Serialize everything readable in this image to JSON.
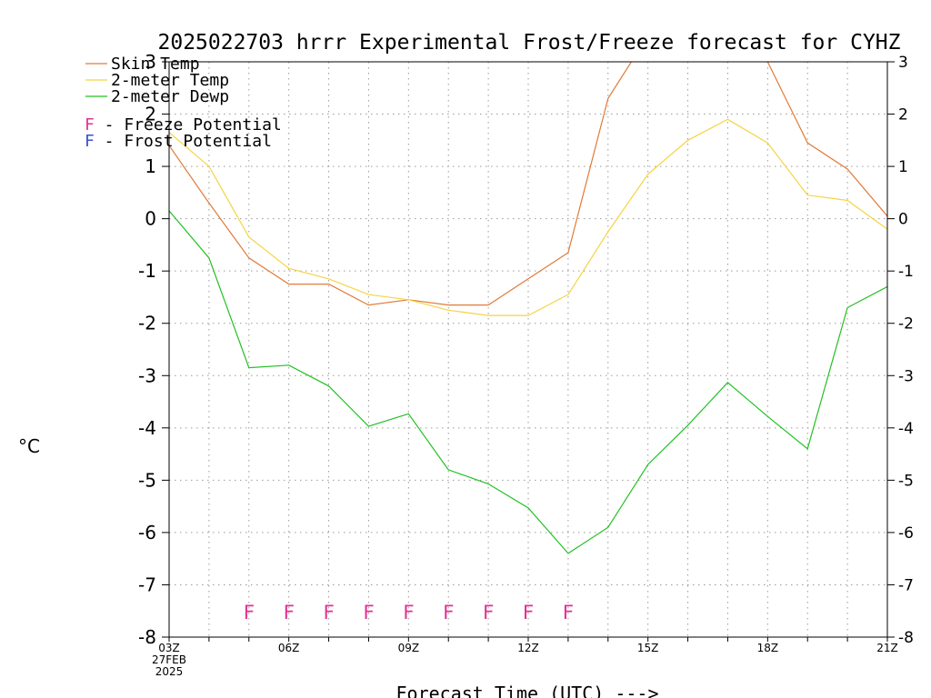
{
  "chart_data": {
    "type": "line",
    "title": "2025022703 hrrr Experimental Frost/Freeze forecast for CYHZ",
    "xlabel": "Forecast Time (UTC) --->",
    "ylabel": "°C",
    "ylim": [
      -8,
      3
    ],
    "y_ticks": [
      -8,
      -7,
      -6,
      -5,
      -4,
      -3,
      -2,
      -1,
      0,
      1,
      2,
      3
    ],
    "x_ticks": [
      {
        "hour": 0,
        "label": "03Z"
      },
      {
        "hour": 3,
        "label": "06Z"
      },
      {
        "hour": 6,
        "label": "09Z"
      },
      {
        "hour": 9,
        "label": "12Z"
      },
      {
        "hour": 12,
        "label": "15Z"
      },
      {
        "hour": 15,
        "label": "18Z"
      },
      {
        "hour": 18,
        "label": "21Z"
      }
    ],
    "start_date_label": [
      "27FEB",
      "2025"
    ],
    "grid": true,
    "legend_position": "top-left",
    "series": [
      {
        "name": "Skin Temp",
        "color": "#e07b39",
        "x": [
          0,
          1,
          2,
          3,
          4,
          5,
          6,
          7,
          8,
          9,
          10,
          11,
          12,
          13,
          14,
          15,
          16,
          17,
          18
        ],
        "values": [
          1.4,
          0.3,
          -0.75,
          -1.25,
          -1.25,
          -1.65,
          -1.55,
          -1.65,
          -1.65,
          -1.15,
          -0.65,
          2.3,
          3.5,
          3.8,
          3.8,
          3.0,
          1.45,
          0.95,
          0.05
        ]
      },
      {
        "name": "2-meter Temp",
        "color": "#f5d442",
        "x": [
          0,
          1,
          2,
          3,
          4,
          5,
          6,
          7,
          8,
          9,
          10,
          11,
          12,
          13,
          14,
          15,
          16,
          17,
          18
        ],
        "values": [
          1.65,
          1.0,
          -0.35,
          -0.95,
          -1.15,
          -1.45,
          -1.55,
          -1.75,
          -1.85,
          -1.85,
          -1.45,
          -0.25,
          0.85,
          1.5,
          1.9,
          1.45,
          0.45,
          0.35,
          -0.2
        ]
      },
      {
        "name": "2-meter Dewp",
        "color": "#22c022",
        "x": [
          0,
          1,
          2,
          3,
          4,
          5,
          6,
          7,
          8,
          9,
          10,
          11,
          12,
          13,
          14,
          15,
          16,
          17,
          18
        ],
        "values": [
          0.15,
          -0.75,
          -2.85,
          -2.8,
          -3.2,
          -3.97,
          -3.73,
          -4.8,
          -5.07,
          -5.53,
          -6.4,
          -5.9,
          -4.7,
          -3.95,
          -3.13,
          -3.78,
          -4.4,
          -1.7,
          -1.3
        ]
      }
    ],
    "annotations": {
      "freeze_potential": {
        "label": "F - Freeze Potential",
        "marker": "F",
        "color": "#e0338f",
        "hours": [
          2,
          3,
          4,
          5,
          6,
          7,
          8,
          9,
          10
        ]
      },
      "frost_potential": {
        "label": "F - Frost Potential",
        "marker": "F",
        "color": "#3a4fd6",
        "hours": []
      }
    }
  }
}
